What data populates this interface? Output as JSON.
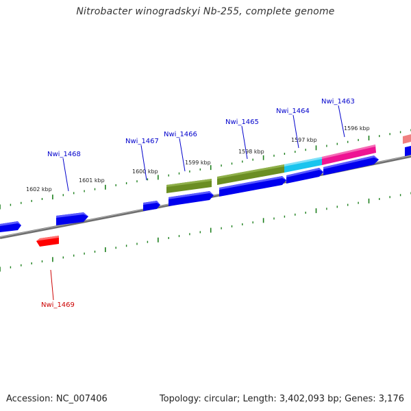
{
  "title": "Nitrobacter winogradskyi Nb-255, complete genome",
  "footer": {
    "accession": "Accession: NC_007406",
    "summary": "Topology: circular; Length: 3,402,093 bp; Genes: 3,176"
  },
  "colors": {
    "backbone": "#8a8a8a",
    "tick": "#1c7f1c",
    "label_blue": "#0000cc",
    "label_red": "#cc0000",
    "gene_blue": "#0000ee",
    "gene_red": "#ff0000",
    "gene_olive": "#6b8e23",
    "gene_cyan": "#19c4ee",
    "gene_magenta": "#ee1493",
    "gene_pink": "#f08080"
  },
  "kbp_labels": [
    "1602 kbp",
    "1601 kbp",
    "1600 kbp",
    "1599 kbp",
    "1598 kbp",
    "1597 kbp",
    "1596 kbp"
  ],
  "gene_labels": [
    {
      "id": "Nwi_1468",
      "color": "blue"
    },
    {
      "id": "Nwi_1467",
      "color": "blue"
    },
    {
      "id": "Nwi_1466",
      "color": "blue"
    },
    {
      "id": "Nwi_1465",
      "color": "blue"
    },
    {
      "id": "Nwi_1464",
      "color": "blue"
    },
    {
      "id": "Nwi_1463",
      "color": "blue"
    },
    {
      "id": "Nwi_1469",
      "color": "red"
    }
  ]
}
